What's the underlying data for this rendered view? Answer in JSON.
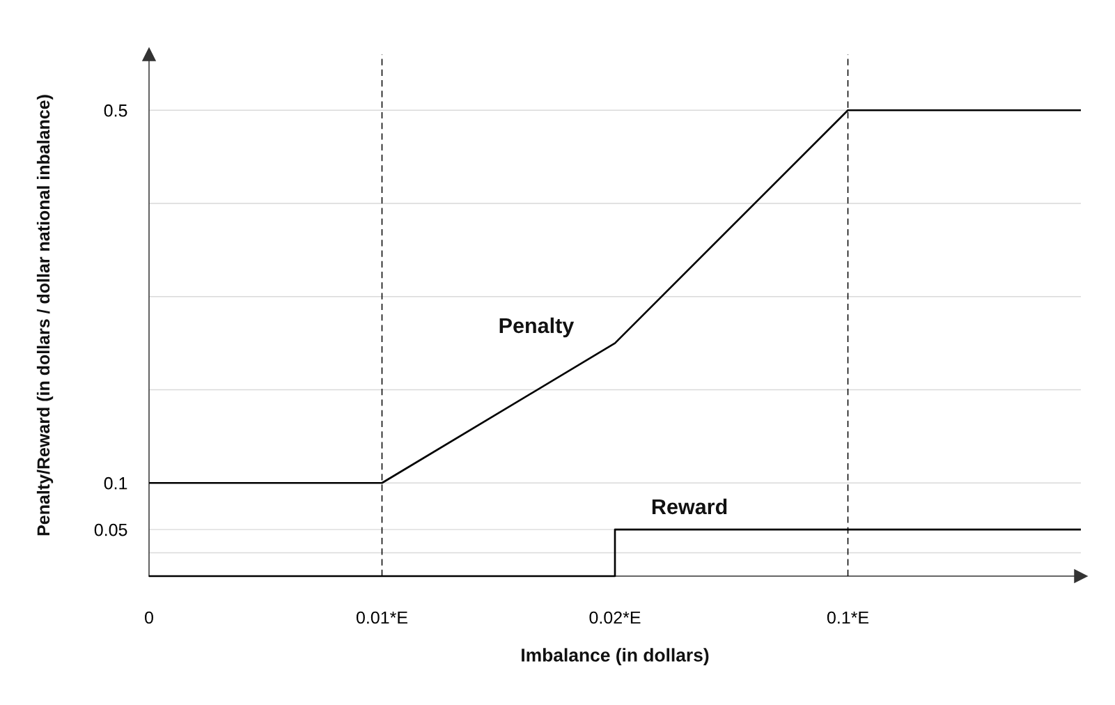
{
  "chart_data": {
    "type": "line",
    "xlabel": "Imbalance (in dollars)",
    "ylabel": "Penalty/Reward (in dollars / dollar national inbalance)",
    "categories": [
      "0",
      "0.01*E",
      "0.02*E",
      "0.1*E",
      null
    ],
    "ylim": [
      0,
      0.56
    ],
    "yticks": [
      {
        "value": 0.025,
        "label": null
      },
      0.05,
      0.1,
      {
        "value": 0.2,
        "label": null
      },
      {
        "value": 0.3,
        "label": null
      },
      {
        "value": 0.4,
        "label": null
      },
      0.5
    ],
    "grid": "y",
    "legend": false,
    "line_style": "solid",
    "series": [
      {
        "name": "Penalty",
        "color": "#000000",
        "values": [
          0.1,
          0.1,
          0.25,
          0.5,
          0.5
        ]
      },
      {
        "name": "Reward",
        "type": "step",
        "color": "#000000",
        "values": [
          0,
          0,
          0.05,
          0.05,
          0.05
        ]
      }
    ],
    "ref_lines": [
      {
        "axis": "x",
        "value": "0.01*E",
        "color": "#000000",
        "line_style": "dashed"
      },
      {
        "axis": "x",
        "value": "0.1*E",
        "color": "#000000",
        "line_style": "dashed"
      }
    ]
  }
}
